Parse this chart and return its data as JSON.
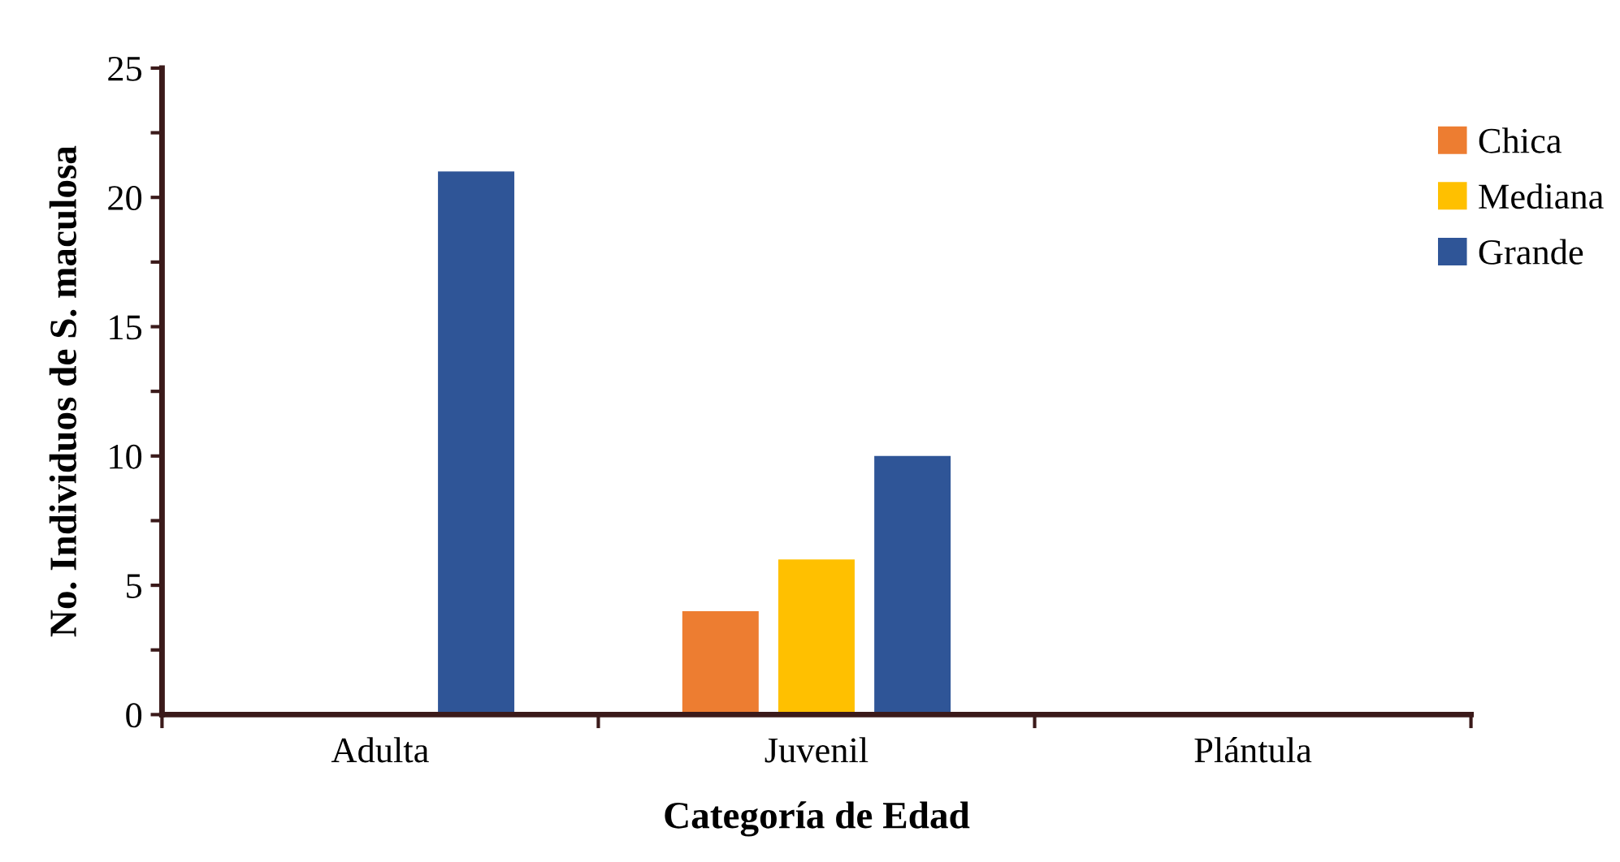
{
  "chart_data": {
    "type": "bar",
    "xlabel": "Categoría de Edad",
    "ylabel": "No. Individuos de S. maculosa",
    "categories": [
      "Adulta",
      "Juvenil",
      "Plántula"
    ],
    "series": [
      {
        "name": "Chica",
        "color": "#ed7d31",
        "values": [
          0,
          4,
          0
        ]
      },
      {
        "name": "Mediana",
        "color": "#ffc000",
        "values": [
          0,
          6,
          0
        ]
      },
      {
        "name": "Grande",
        "color": "#2f5597",
        "values": [
          21,
          10,
          0
        ]
      }
    ],
    "ylim": [
      0,
      25
    ],
    "yticks": [
      0,
      {
        "value": 2.5,
        "label": null
      },
      5,
      {
        "value": 7.5,
        "label": null
      },
      10,
      {
        "value": 12.5,
        "label": null
      },
      15,
      {
        "value": 17.5,
        "label": null
      },
      20,
      {
        "value": 22.5,
        "label": null
      },
      25
    ],
    "grid": false,
    "legend": "top right"
  }
}
